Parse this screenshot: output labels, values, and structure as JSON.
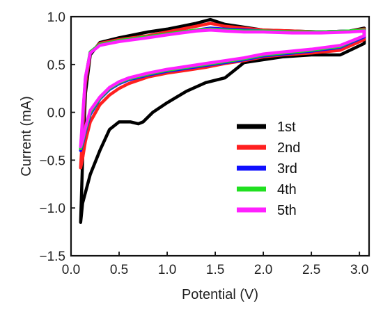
{
  "chart_data": {
    "type": "line",
    "title": "",
    "xlabel": "Potential (V)",
    "ylabel": "Current (mA)",
    "xlim": [
      0,
      3.1
    ],
    "ylim": [
      -1.5,
      1.0
    ],
    "xticks": [
      0.0,
      0.5,
      1.0,
      1.5,
      2.0,
      2.5,
      3.0
    ],
    "xtick_labels": [
      "0.0",
      "0.5",
      "1.0",
      "1.5",
      "2.0",
      "2.5",
      "3.0"
    ],
    "yticks": [
      -1.5,
      -1.0,
      -0.5,
      0.0,
      0.5,
      1.0
    ],
    "ytick_labels": [
      "−1.5",
      "−1.0",
      "−0.5",
      "0.0",
      "0.5",
      "1.0"
    ],
    "grid": false,
    "legend_position": "center-right",
    "series": [
      {
        "name": "1st",
        "color": "#000000",
        "x": [
          0.1,
          0.12,
          0.15,
          0.2,
          0.3,
          0.5,
          0.8,
          1.0,
          1.3,
          1.45,
          1.6,
          1.8,
          2.0,
          2.3,
          2.6,
          2.9,
          3.05,
          3.05,
          2.8,
          2.5,
          2.2,
          2.0,
          1.8,
          1.7,
          1.6,
          1.4,
          1.2,
          1.0,
          0.85,
          0.75,
          0.7,
          0.62,
          0.5,
          0.4,
          0.3,
          0.2,
          0.12,
          0.1
        ],
        "y": [
          -1.15,
          -0.5,
          0.2,
          0.6,
          0.73,
          0.78,
          0.84,
          0.87,
          0.93,
          0.97,
          0.92,
          0.89,
          0.86,
          0.85,
          0.84,
          0.85,
          0.88,
          0.72,
          0.6,
          0.6,
          0.58,
          0.55,
          0.52,
          0.44,
          0.36,
          0.31,
          0.22,
          0.1,
          0.0,
          -0.1,
          -0.12,
          -0.1,
          -0.1,
          -0.18,
          -0.4,
          -0.65,
          -0.95,
          -1.15
        ]
      },
      {
        "name": "2nd",
        "color": "#ff2020",
        "x": [
          0.1,
          0.12,
          0.15,
          0.2,
          0.3,
          0.5,
          0.8,
          1.0,
          1.3,
          1.45,
          1.6,
          1.8,
          2.0,
          2.3,
          2.6,
          2.9,
          3.05,
          3.05,
          2.8,
          2.5,
          2.2,
          2.0,
          1.8,
          1.6,
          1.4,
          1.2,
          1.0,
          0.8,
          0.6,
          0.5,
          0.4,
          0.3,
          0.2,
          0.15,
          0.12,
          0.1
        ],
        "y": [
          -0.58,
          -0.2,
          0.3,
          0.62,
          0.72,
          0.76,
          0.8,
          0.84,
          0.9,
          0.93,
          0.9,
          0.88,
          0.86,
          0.85,
          0.84,
          0.85,
          0.87,
          0.76,
          0.65,
          0.62,
          0.6,
          0.58,
          0.54,
          0.51,
          0.47,
          0.44,
          0.41,
          0.37,
          0.3,
          0.25,
          0.18,
          0.08,
          -0.1,
          -0.3,
          -0.48,
          -0.58
        ]
      },
      {
        "name": "3rd",
        "color": "#1010ff",
        "x": [
          0.1,
          0.12,
          0.15,
          0.2,
          0.3,
          0.5,
          0.8,
          1.0,
          1.3,
          1.45,
          1.6,
          1.8,
          2.0,
          2.3,
          2.6,
          2.9,
          3.05,
          3.05,
          2.8,
          2.5,
          2.2,
          2.0,
          1.8,
          1.6,
          1.4,
          1.2,
          1.0,
          0.8,
          0.6,
          0.5,
          0.4,
          0.3,
          0.2,
          0.15,
          0.12,
          0.1
        ],
        "y": [
          -0.4,
          -0.1,
          0.35,
          0.63,
          0.71,
          0.75,
          0.79,
          0.82,
          0.86,
          0.88,
          0.87,
          0.86,
          0.85,
          0.84,
          0.84,
          0.85,
          0.86,
          0.79,
          0.68,
          0.64,
          0.61,
          0.59,
          0.55,
          0.52,
          0.49,
          0.46,
          0.43,
          0.39,
          0.34,
          0.3,
          0.24,
          0.14,
          -0.02,
          -0.2,
          -0.33,
          -0.4
        ]
      },
      {
        "name": "4th",
        "color": "#20e020",
        "x": [
          0.1,
          0.12,
          0.15,
          0.2,
          0.3,
          0.5,
          0.8,
          1.0,
          1.3,
          1.45,
          1.6,
          1.8,
          2.0,
          2.3,
          2.6,
          2.9,
          3.05,
          3.05,
          2.8,
          2.5,
          2.2,
          2.0,
          1.8,
          1.6,
          1.4,
          1.2,
          1.0,
          0.8,
          0.6,
          0.5,
          0.4,
          0.3,
          0.2,
          0.15,
          0.12,
          0.1
        ],
        "y": [
          -0.38,
          -0.08,
          0.36,
          0.63,
          0.71,
          0.75,
          0.79,
          0.82,
          0.86,
          0.87,
          0.86,
          0.85,
          0.85,
          0.84,
          0.84,
          0.85,
          0.86,
          0.8,
          0.69,
          0.65,
          0.62,
          0.6,
          0.56,
          0.53,
          0.5,
          0.47,
          0.44,
          0.4,
          0.35,
          0.31,
          0.25,
          0.15,
          0.0,
          -0.18,
          -0.31,
          -0.38
        ]
      },
      {
        "name": "5th",
        "color": "#ff20ff",
        "x": [
          0.1,
          0.12,
          0.15,
          0.2,
          0.3,
          0.5,
          0.8,
          1.0,
          1.3,
          1.45,
          1.6,
          1.8,
          2.0,
          2.3,
          2.6,
          2.9,
          3.05,
          3.05,
          2.8,
          2.5,
          2.2,
          2.0,
          1.8,
          1.6,
          1.4,
          1.2,
          1.0,
          0.8,
          0.6,
          0.5,
          0.4,
          0.3,
          0.2,
          0.15,
          0.12,
          0.1
        ],
        "y": [
          -0.36,
          -0.05,
          0.37,
          0.62,
          0.7,
          0.74,
          0.78,
          0.81,
          0.85,
          0.86,
          0.85,
          0.84,
          0.84,
          0.83,
          0.83,
          0.84,
          0.85,
          0.8,
          0.7,
          0.66,
          0.63,
          0.61,
          0.57,
          0.54,
          0.51,
          0.48,
          0.45,
          0.41,
          0.36,
          0.32,
          0.26,
          0.16,
          0.02,
          -0.16,
          -0.29,
          -0.36
        ]
      }
    ]
  }
}
